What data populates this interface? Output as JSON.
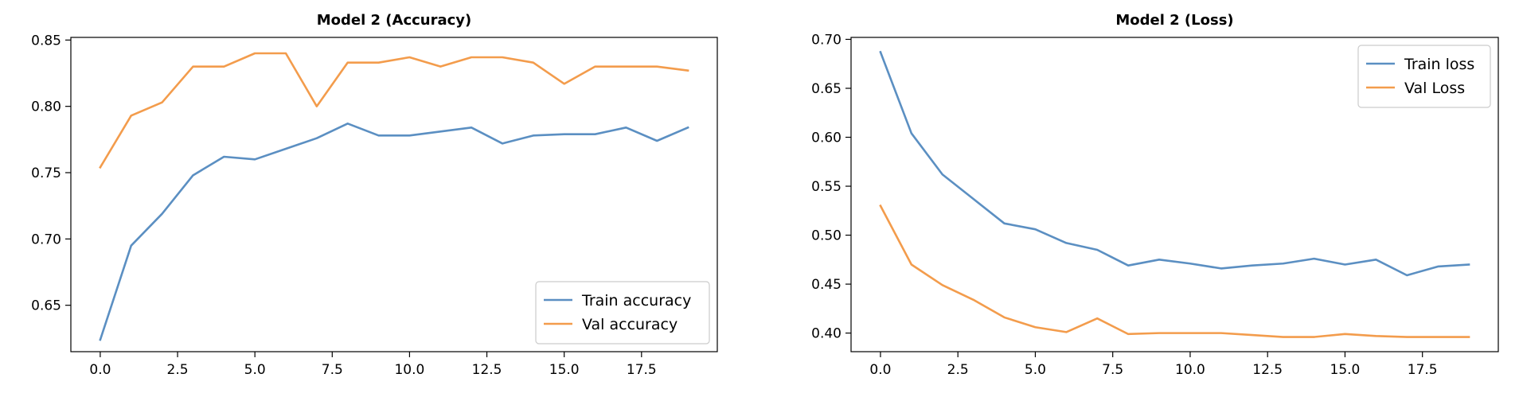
{
  "chart_data": [
    {
      "type": "line",
      "title": "Model 2 (Accuracy)",
      "xlabel": "",
      "ylabel": "",
      "x": [
        0,
        1,
        2,
        3,
        4,
        5,
        6,
        7,
        8,
        9,
        10,
        11,
        12,
        13,
        14,
        15,
        16,
        17,
        18,
        19
      ],
      "xlim": [
        -0.95,
        19.95
      ],
      "ylim": [
        0.615,
        0.852
      ],
      "xticks": [
        0.0,
        2.5,
        5.0,
        7.5,
        10.0,
        12.5,
        15.0,
        17.5
      ],
      "xtick_labels": [
        "0.0",
        "2.5",
        "5.0",
        "7.5",
        "10.0",
        "12.5",
        "15.0",
        "17.5"
      ],
      "yticks": [
        0.65,
        0.7,
        0.75,
        0.8,
        0.85
      ],
      "ytick_labels": [
        "0.65",
        "0.70",
        "0.75",
        "0.80",
        "0.85"
      ],
      "grid": false,
      "legend_position": "lower-right",
      "series": [
        {
          "name": "Train accuracy",
          "color": "#5b8fc2",
          "values": [
            0.624,
            0.695,
            0.719,
            0.748,
            0.762,
            0.76,
            0.768,
            0.776,
            0.787,
            0.778,
            0.778,
            0.781,
            0.784,
            0.772,
            0.778,
            0.779,
            0.779,
            0.784,
            0.774,
            0.784
          ]
        },
        {
          "name": "Val accuracy",
          "color": "#f39c4c",
          "values": [
            0.754,
            0.793,
            0.803,
            0.83,
            0.83,
            0.84,
            0.84,
            0.8,
            0.833,
            0.833,
            0.837,
            0.83,
            0.837,
            0.837,
            0.833,
            0.817,
            0.83,
            0.83,
            0.83,
            0.827
          ]
        }
      ]
    },
    {
      "type": "line",
      "title": "Model 2 (Loss)",
      "xlabel": "",
      "ylabel": "",
      "x": [
        0,
        1,
        2,
        3,
        4,
        5,
        6,
        7,
        8,
        9,
        10,
        11,
        12,
        13,
        14,
        15,
        16,
        17,
        18,
        19
      ],
      "xlim": [
        -0.95,
        19.95
      ],
      "ylim": [
        0.381,
        0.702
      ],
      "xticks": [
        0.0,
        2.5,
        5.0,
        7.5,
        10.0,
        12.5,
        15.0,
        17.5
      ],
      "xtick_labels": [
        "0.0",
        "2.5",
        "5.0",
        "7.5",
        "10.0",
        "12.5",
        "15.0",
        "17.5"
      ],
      "yticks": [
        0.4,
        0.45,
        0.5,
        0.55,
        0.6,
        0.65,
        0.7
      ],
      "ytick_labels": [
        "0.40",
        "0.45",
        "0.50",
        "0.55",
        "0.60",
        "0.65",
        "0.70"
      ],
      "grid": false,
      "legend_position": "upper-right",
      "series": [
        {
          "name": "Train loss",
          "color": "#5b8fc2",
          "values": [
            0.687,
            0.604,
            0.562,
            0.537,
            0.512,
            0.506,
            0.492,
            0.485,
            0.469,
            0.475,
            0.471,
            0.466,
            0.469,
            0.471,
            0.476,
            0.47,
            0.475,
            0.459,
            0.468,
            0.47
          ]
        },
        {
          "name": "Val Loss",
          "color": "#f39c4c",
          "values": [
            0.53,
            0.47,
            0.449,
            0.434,
            0.416,
            0.406,
            0.401,
            0.415,
            0.399,
            0.4,
            0.4,
            0.4,
            0.398,
            0.396,
            0.396,
            0.399,
            0.397,
            0.396,
            0.396,
            0.396
          ]
        }
      ]
    }
  ]
}
